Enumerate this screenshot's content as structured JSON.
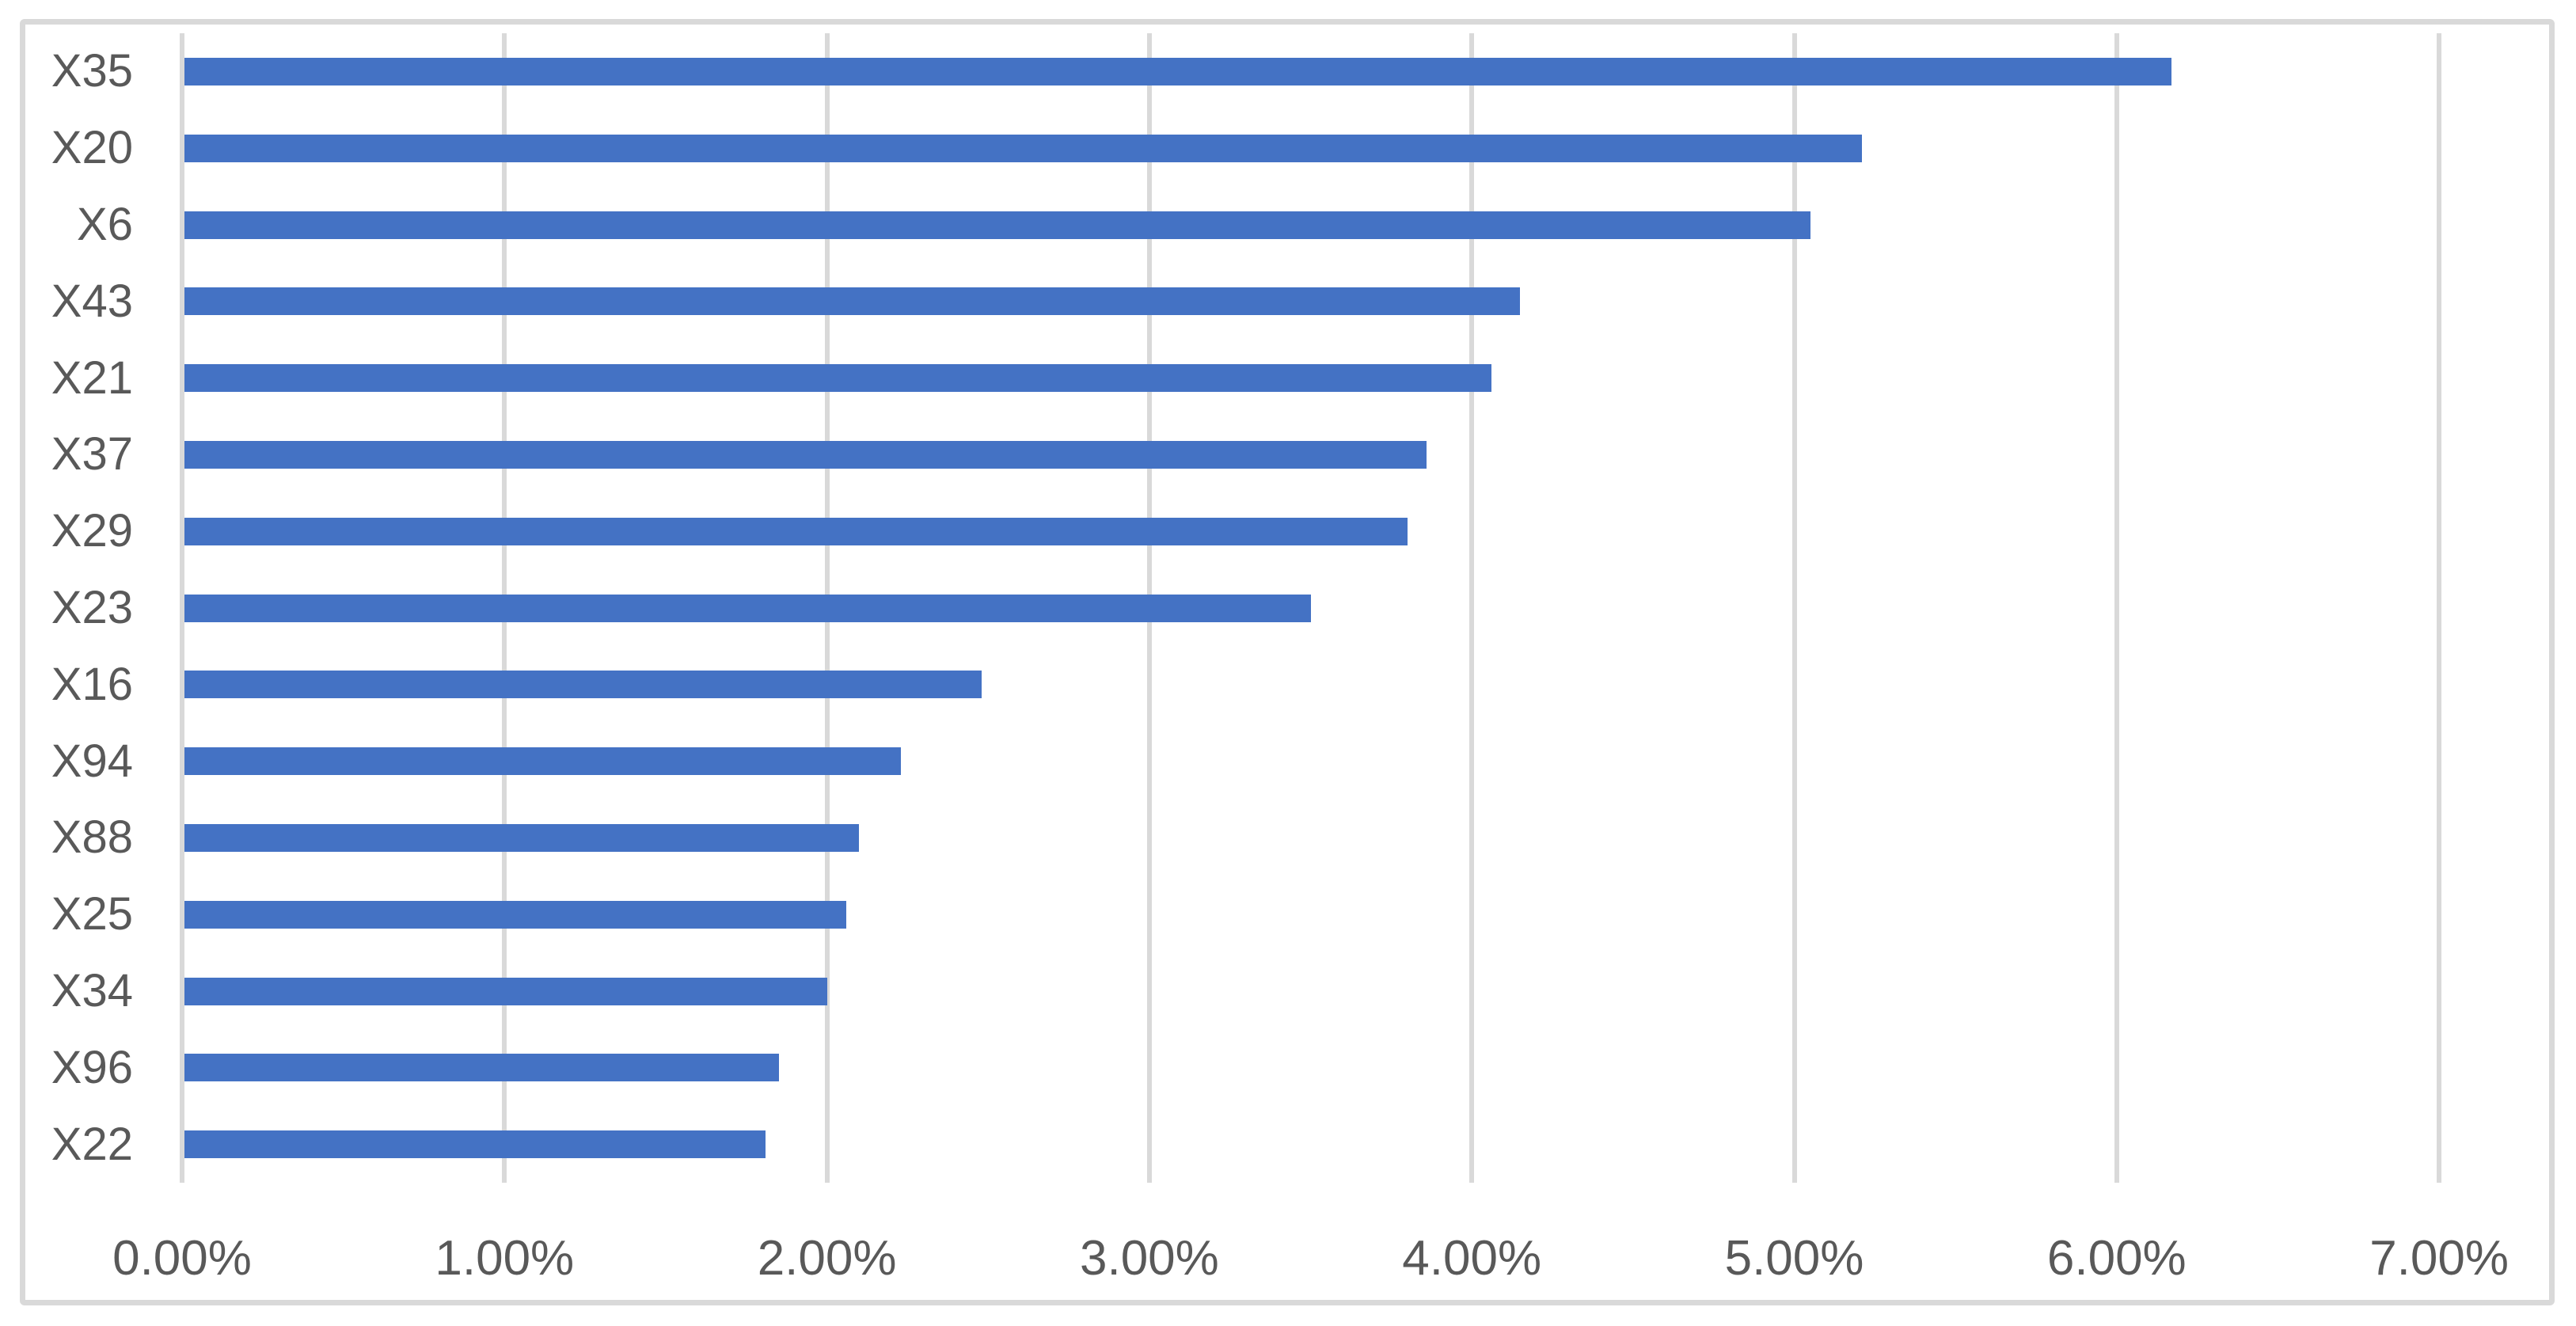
{
  "chart_data": {
    "type": "bar",
    "orientation": "horizontal",
    "title": "",
    "categories": [
      "X35",
      "X20",
      "X6",
      "X43",
      "X21",
      "X37",
      "X29",
      "X23",
      "X16",
      "X94",
      "X88",
      "X25",
      "X34",
      "X96",
      "X22"
    ],
    "values": [
      6.17,
      5.21,
      5.05,
      4.15,
      4.06,
      3.86,
      3.8,
      3.5,
      2.48,
      2.23,
      2.1,
      2.06,
      2.0,
      1.85,
      1.81
    ],
    "value_unit": "percent",
    "x_tick_labels": [
      "0.00%",
      "1.00%",
      "2.00%",
      "3.00%",
      "4.00%",
      "5.00%",
      "6.00%",
      "7.00%"
    ],
    "x_tick_values": [
      0,
      1,
      2,
      3,
      4,
      5,
      6,
      7
    ],
    "xlim": [
      0,
      7.34
    ],
    "grid": true,
    "legend": false,
    "colors": {
      "bar": "#4472C4",
      "gridline": "#D9D9D9",
      "frame_border": "#D9D9D9",
      "label_text": "#595959",
      "background": "#FFFFFF"
    }
  }
}
